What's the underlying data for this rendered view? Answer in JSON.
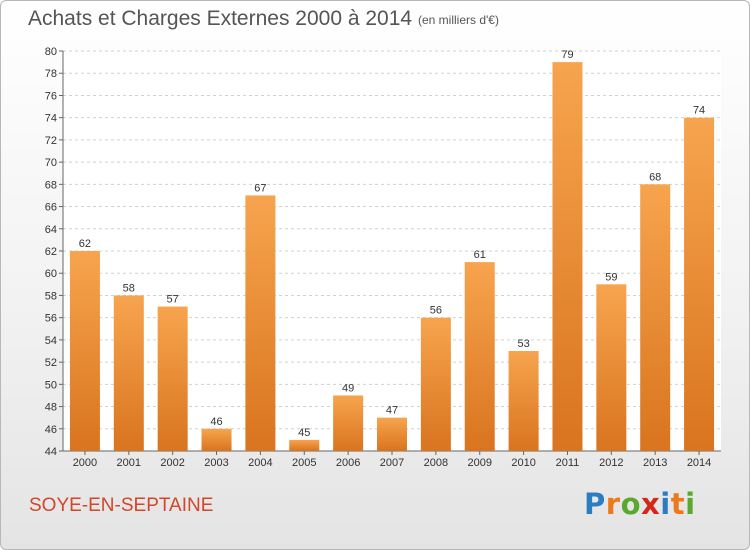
{
  "header": {
    "title": "Achats et Charges Externes 2000 à 2014",
    "unit": "(en milliers d'€)"
  },
  "footer": {
    "town": "SOYE-EN-SEPTAINE",
    "logo_letters": [
      "P",
      "r",
      "o",
      "x",
      "i",
      "t",
      "i"
    ]
  },
  "colors": {
    "bar_light": "#f7a44e",
    "bar_dark": "#d9741f",
    "town_text": "#d2462a",
    "logo_letters": [
      "#2c7cc1",
      "#ec7a1b",
      "#5aa82e",
      "#d3281c",
      "#2c7cc1",
      "#ec7a1b",
      "#5aa82e"
    ]
  },
  "chart_data": {
    "type": "bar",
    "title": "Achats et Charges Externes 2000 à 2014",
    "subtitle": "(en milliers d'€)",
    "categories": [
      "2000",
      "2001",
      "2002",
      "2003",
      "2004",
      "2005",
      "2006",
      "2007",
      "2008",
      "2009",
      "2010",
      "2011",
      "2012",
      "2013",
      "2014"
    ],
    "values": [
      62,
      58,
      57,
      46,
      67,
      45,
      49,
      47,
      56,
      61,
      53,
      79,
      59,
      68,
      74
    ],
    "ylim": [
      44,
      80
    ],
    "yticks": [
      44,
      46,
      48,
      50,
      52,
      54,
      56,
      58,
      60,
      62,
      64,
      66,
      68,
      70,
      72,
      74,
      76,
      78,
      80
    ],
    "grid": true,
    "data_labels": true
  }
}
